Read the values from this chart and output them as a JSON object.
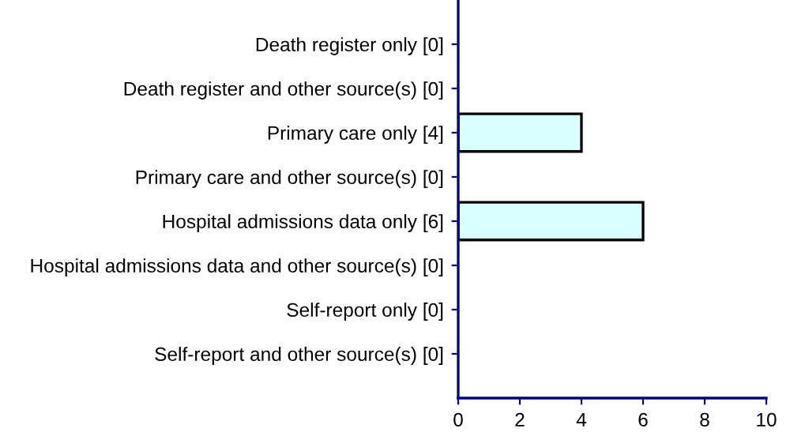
{
  "chart_data": {
    "type": "bar",
    "orientation": "horizontal",
    "categories": [
      "Death register only [0]",
      "Death register and other source(s) [0]",
      "Primary care only [4]",
      "Primary care and other source(s) [0]",
      "Hospital admissions data only [6]",
      "Hospital admissions data and other source(s) [0]",
      "Self-report only [0]",
      "Self-report and other source(s) [0]"
    ],
    "values": [
      0,
      0,
      4,
      0,
      6,
      0,
      0,
      0
    ],
    "color": "#d9ffff",
    "xlim": [
      0,
      10
    ],
    "xticks": [
      0,
      2,
      4,
      6,
      8,
      10
    ],
    "grid": false,
    "legend": false
  }
}
